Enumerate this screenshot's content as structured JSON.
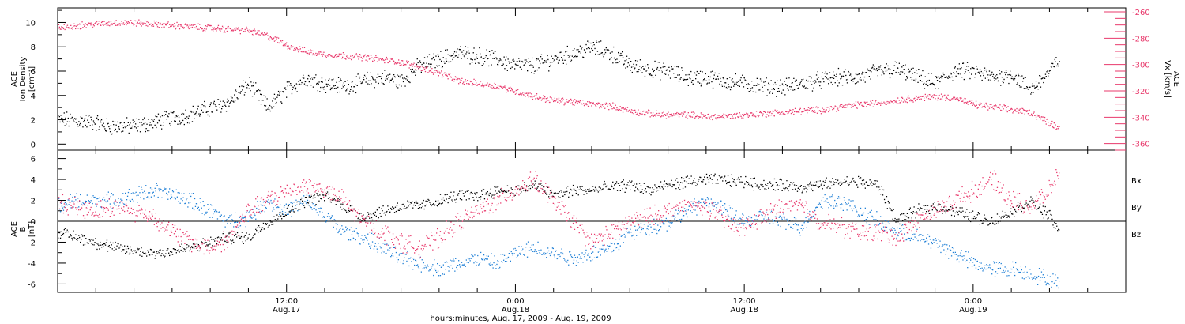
{
  "x_axis": {
    "title": "hours:minutes, Aug. 17, 2009 - Aug. 19, 2009",
    "start_hours": 0,
    "end_hours": 56,
    "ticks": [
      {
        "t": 12,
        "time": "12:00",
        "date": "Aug.17"
      },
      {
        "t": 24,
        "time": "0:00",
        "date": "Aug.18"
      },
      {
        "t": 36,
        "time": "12:00",
        "date": "Aug.18"
      },
      {
        "t": 48,
        "time": "0:00",
        "date": "Aug.19"
      }
    ]
  },
  "panel1": {
    "ylabel_lines": [
      "ACE",
      "Ion Density",
      "[cm⁻³]"
    ],
    "y2label_lines": [
      "ACE",
      "Vx [km/s]"
    ],
    "yticks": [
      "0",
      "2",
      "4",
      "6",
      "8",
      "10"
    ],
    "y2ticks": [
      "-260",
      "-280",
      "-300",
      "-320",
      "-340",
      "-360"
    ]
  },
  "panel2": {
    "ylabel_lines": [
      "ACE",
      "B",
      "[nT]"
    ],
    "yticks": [
      "-6",
      "-4",
      "-2",
      "0",
      "2",
      "4",
      "6"
    ],
    "legend": [
      {
        "label": "Bx",
        "color": "#000000"
      },
      {
        "label": "By",
        "color": "#1e7fd6"
      },
      {
        "label": "Bz",
        "color": "#e8386b"
      }
    ]
  },
  "chart_data": [
    {
      "type": "scatter",
      "title": "",
      "xlabel": "hours:minutes, Aug. 17, 2009 - Aug. 19, 2009",
      "ylabel": "ACE Ion Density [cm^-3]",
      "y2label": "ACE Vx [km/s]",
      "xlim": [
        0,
        56
      ],
      "ylim": [
        -0.5,
        11.2
      ],
      "y2lim": [
        -365,
        -257
      ],
      "grid": false,
      "series": [
        {
          "name": "Ion Density",
          "color": "#000000",
          "axis": "left",
          "x": [
            0,
            1,
            2,
            2.5,
            3,
            4,
            5,
            6,
            7,
            8,
            9,
            10,
            11,
            12,
            12.5,
            13,
            14,
            15,
            16,
            17,
            18,
            19,
            20,
            21,
            22,
            23,
            24,
            25,
            26,
            27,
            28,
            29,
            30,
            31,
            32,
            33,
            34,
            35,
            36,
            37,
            38,
            39,
            40,
            41,
            42,
            43,
            44,
            45,
            46,
            47,
            48,
            49,
            50,
            51,
            52,
            52.5
          ],
          "y": [
            2,
            2,
            1.8,
            1.5,
            1.5,
            1.5,
            1.8,
            2.2,
            2.5,
            3,
            3.5,
            5,
            3,
            4.5,
            5,
            5.5,
            5,
            4.8,
            5.2,
            5.5,
            5.2,
            6.5,
            7,
            7.5,
            7.3,
            7,
            6.5,
            6.5,
            7,
            7.5,
            8,
            7.5,
            6.5,
            6.2,
            6,
            5.5,
            5.5,
            5.2,
            5,
            4.8,
            4.7,
            5,
            5.3,
            5.5,
            5.5,
            6,
            6.2,
            5.5,
            5,
            6,
            6,
            5.5,
            5.8,
            4.5,
            6,
            7
          ]
        },
        {
          "name": "Vx",
          "color": "#e8386b",
          "axis": "right",
          "x": [
            0,
            1,
            2,
            3,
            4,
            5,
            6,
            7,
            8,
            9,
            10,
            11,
            12,
            13,
            14,
            15,
            16,
            17,
            18,
            19,
            20,
            21,
            22,
            23,
            24,
            25,
            26,
            27,
            28,
            29,
            30,
            31,
            32,
            33,
            34,
            35,
            36,
            37,
            38,
            39,
            40,
            41,
            42,
            43,
            44,
            45,
            46,
            47,
            48,
            49,
            50,
            51,
            52,
            52.5
          ],
          "y": [
            -272,
            -270,
            -269,
            -268,
            -268,
            -269,
            -270,
            -271,
            -272,
            -273,
            -274,
            -278,
            -285,
            -290,
            -292,
            -293,
            -294,
            -296,
            -298,
            -302,
            -306,
            -312,
            -314,
            -316,
            -320,
            -324,
            -327,
            -328,
            -330,
            -331,
            -335,
            -337,
            -338,
            -338,
            -339,
            -339,
            -338,
            -337,
            -336,
            -335,
            -334,
            -332,
            -330,
            -329,
            -327,
            -325,
            -324,
            -325,
            -330,
            -332,
            -334,
            -336,
            -344,
            -348
          ]
        }
      ]
    },
    {
      "type": "scatter",
      "title": "",
      "xlabel": "hours:minutes, Aug. 17, 2009 - Aug. 19, 2009",
      "ylabel": "ACE B [nT]",
      "xlim": [
        0,
        56
      ],
      "ylim": [
        -6.8,
        6.8
      ],
      "grid": false,
      "zero_line": true,
      "series": [
        {
          "name": "Bx",
          "color": "#000000",
          "x": [
            0,
            1,
            2,
            3,
            4,
            5,
            6,
            7,
            8,
            9,
            10,
            11,
            12,
            13,
            14,
            15,
            16,
            17,
            18,
            19,
            20,
            21,
            22,
            23,
            24,
            25,
            26,
            27,
            28,
            29,
            30,
            31,
            32,
            33,
            34,
            35,
            36,
            37,
            38,
            39,
            40,
            41,
            42,
            43,
            44,
            45,
            46,
            47,
            48,
            49,
            50,
            51,
            52,
            52.5
          ],
          "y": [
            -1,
            -1.5,
            -2,
            -2.5,
            -2.8,
            -3,
            -2.8,
            -2.5,
            -2,
            -1.5,
            -1.5,
            0,
            1,
            2,
            2.5,
            1.5,
            0.5,
            1,
            1.5,
            1.5,
            2,
            2.5,
            2.5,
            3,
            3,
            3.5,
            2.5,
            3,
            3,
            3.3,
            3.5,
            3,
            3.5,
            3.8,
            4,
            4,
            3.8,
            3.5,
            3.5,
            3.3,
            3.5,
            3.8,
            3.8,
            3.5,
            0,
            1,
            1.5,
            1,
            0.5,
            0,
            1,
            2,
            0.5,
            -1
          ]
        },
        {
          "name": "By",
          "color": "#1e7fd6",
          "x": [
            0,
            1,
            2,
            3,
            4,
            5,
            6,
            7,
            8,
            9,
            10,
            11,
            12,
            13,
            14,
            15,
            16,
            17,
            18,
            19,
            20,
            21,
            22,
            23,
            24,
            25,
            26,
            27,
            28,
            29,
            30,
            31,
            32,
            33,
            34,
            35,
            36,
            37,
            38,
            39,
            40,
            41,
            42,
            43,
            44,
            45,
            46,
            47,
            48,
            49,
            50,
            51,
            52,
            52.5
          ],
          "y": [
            1.5,
            2,
            2,
            2,
            2.5,
            3,
            2.5,
            2,
            1,
            0,
            0.5,
            2,
            1,
            2,
            0.5,
            -1,
            -1.5,
            -2.5,
            -3.5,
            -4,
            -4.5,
            -4,
            -3.5,
            -4,
            -3,
            -2.5,
            -3,
            -3.5,
            -3,
            -2.5,
            -1,
            -0.5,
            0,
            1,
            2,
            1,
            0,
            0.5,
            0,
            -0.5,
            2,
            2,
            1,
            0,
            -1,
            -1.5,
            -2,
            -3,
            -4,
            -4.5,
            -4.5,
            -5,
            -5.5,
            -6
          ]
        },
        {
          "name": "Bz",
          "color": "#e8386b",
          "x": [
            0,
            1,
            2,
            3,
            4,
            5,
            6,
            7,
            8,
            9,
            10,
            11,
            12,
            13,
            14,
            15,
            16,
            17,
            18,
            19,
            20,
            21,
            22,
            23,
            24,
            25,
            26,
            27,
            28,
            29,
            30,
            31,
            32,
            33,
            34,
            35,
            36,
            37,
            38,
            39,
            40,
            41,
            42,
            43,
            44,
            45,
            46,
            47,
            48,
            49,
            50,
            51,
            52,
            52.5
          ],
          "y": [
            1.8,
            1.5,
            1,
            1.5,
            1,
            0.5,
            -1,
            -2,
            -2.5,
            -1.5,
            1,
            2,
            3,
            3.5,
            3,
            2,
            0,
            -1,
            -2,
            -2.5,
            -1.5,
            0,
            1,
            2,
            3,
            4,
            2,
            0,
            -2,
            -1,
            0,
            0.5,
            1,
            1.5,
            1.5,
            0,
            -0.5,
            0.5,
            1.5,
            1.5,
            0,
            -0.5,
            -1,
            -1,
            -1.5,
            0,
            1,
            2,
            3,
            4,
            2,
            1.5,
            3,
            5
          ]
        }
      ]
    }
  ]
}
